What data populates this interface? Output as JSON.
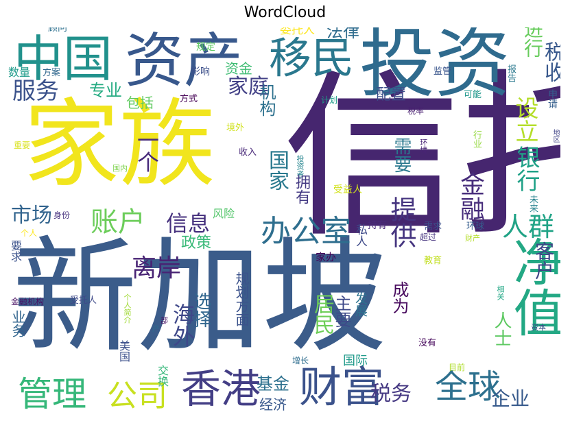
{
  "title": "WordCloud",
  "colors": [
    "#440154",
    "#472c7a",
    "#3b518b",
    "#2c718e",
    "#21908d",
    "#27ad81",
    "#5cc863",
    "#aadc32",
    "#fde725"
  ],
  "words": [
    {
      "text": "新加坡",
      "color": "#3b5c8a"
    },
    {
      "text": "信托",
      "color": "#46266f"
    },
    {
      "text": "家族",
      "color": "#f1e51d"
    },
    {
      "text": "投资",
      "color": "#2f6b8e"
    },
    {
      "text": "资产",
      "color": "#38588c"
    },
    {
      "text": "中国",
      "color": "#21918c"
    },
    {
      "text": "移民",
      "color": "#2a788e"
    },
    {
      "text": "净值",
      "color": "#23a884"
    },
    {
      "text": "香港",
      "color": "#433e85"
    },
    {
      "text": "财富",
      "color": "#3b528b"
    },
    {
      "text": "全球",
      "color": "#2d708e"
    },
    {
      "text": "管理",
      "color": "#35b779"
    },
    {
      "text": "公司",
      "color": "#c8e020"
    },
    {
      "text": "办公室",
      "color": "#2e6e8e"
    },
    {
      "text": "提供",
      "color": "#45347f"
    },
    {
      "text": "金融",
      "color": "#472d7b"
    },
    {
      "text": "服务",
      "color": "#3b528b"
    },
    {
      "text": "家庭",
      "color": "#424086"
    },
    {
      "text": "法律",
      "color": "#2f6c8e"
    },
    {
      "text": "税收",
      "color": "#38588c"
    },
    {
      "text": "进行",
      "color": "#67cc5c"
    },
    {
      "text": "银行",
      "color": "#1fa187"
    },
    {
      "text": "设立",
      "color": "#b5de2b"
    },
    {
      "text": "人群",
      "color": "#20a386"
    },
    {
      "text": "客户",
      "color": "#404588"
    },
    {
      "text": "账户",
      "color": "#6ccd5a"
    },
    {
      "text": "市场",
      "color": "#32648e"
    },
    {
      "text": "信息",
      "color": "#46317e"
    },
    {
      "text": "离岸",
      "color": "#482374"
    },
    {
      "text": "海外",
      "color": "#3f4889"
    },
    {
      "text": "选择",
      "color": "#31668e"
    },
    {
      "text": "政策",
      "color": "#38b977"
    },
    {
      "text": "居民",
      "color": "#6ece58"
    },
    {
      "text": "国家",
      "color": "#29798e"
    },
    {
      "text": "需要",
      "color": "#2a788e"
    },
    {
      "text": "一个",
      "color": "#472a7a"
    },
    {
      "text": "配置",
      "color": "#3d4e8a"
    },
    {
      "text": "机构",
      "color": "#2d718e"
    },
    {
      "text": "专业",
      "color": "#25ab82"
    },
    {
      "text": "包括",
      "color": "#60ca60"
    },
    {
      "text": "资金",
      "color": "#3fbc73"
    },
    {
      "text": "委托人",
      "color": "#fde725"
    },
    {
      "text": "顾问",
      "color": "#2d708e"
    },
    {
      "text": "规定",
      "color": "#5ec962"
    },
    {
      "text": "数量",
      "color": "#1e9b8a"
    },
    {
      "text": "方案",
      "color": "#31688e"
    },
    {
      "text": "影响",
      "color": "#3c4f8a"
    },
    {
      "text": "方式",
      "color": "#440154"
    },
    {
      "text": "监管",
      "color": "#39558c"
    },
    {
      "text": "报告",
      "color": "#2a788e"
    },
    {
      "text": "可能",
      "color": "#1f978b"
    },
    {
      "text": "申请",
      "color": "#355f8d"
    },
    {
      "text": "计划",
      "color": "#1f9e89"
    },
    {
      "text": "税率",
      "color": "#481f70"
    },
    {
      "text": "行业",
      "color": "#95d840"
    },
    {
      "text": "地区",
      "color": "#414487"
    },
    {
      "text": "境外",
      "color": "#d0e11c"
    },
    {
      "text": "重要",
      "color": "#d8e219"
    },
    {
      "text": "收入",
      "color": "#482878"
    },
    {
      "text": "国内",
      "color": "#7fd34e"
    },
    {
      "text": "投资者",
      "color": "#25848e"
    },
    {
      "text": "环境",
      "color": "#482475"
    },
    {
      "text": "拥有",
      "color": "#443a83"
    },
    {
      "text": "受益人",
      "color": "#d2e21b"
    },
    {
      "text": "未来",
      "color": "#26828e"
    },
    {
      "text": "身份",
      "color": "#46327e"
    },
    {
      "text": "风险",
      "color": "#52c569"
    },
    {
      "text": "私人",
      "color": "#3e4a89"
    },
    {
      "text": "持有",
      "color": "#482979"
    },
    {
      "text": "需求",
      "color": "#3c508b"
    },
    {
      "text": "环球",
      "color": "#365c8d"
    },
    {
      "text": "超过",
      "color": "#46337f"
    },
    {
      "text": "财产",
      "color": "#b5de2b"
    },
    {
      "text": "个人",
      "color": "#fde725"
    },
    {
      "text": "要求",
      "color": "#3b528b"
    },
    {
      "text": "家办",
      "color": "#450457"
    },
    {
      "text": "教育",
      "color": "#c2df23"
    },
    {
      "text": "相关",
      "color": "#22a785"
    },
    {
      "text": "金融机构",
      "color": "#471063"
    },
    {
      "text": "受托人",
      "color": "#3e4989"
    },
    {
      "text": "个人简介",
      "color": "#a2da37"
    },
    {
      "text": "业务",
      "color": "#32658e"
    },
    {
      "text": "产",
      "color": "#2e6d8e"
    },
    {
      "text": "部",
      "color": "#481769"
    },
    {
      "text": "规划方面",
      "color": "#3b528b"
    },
    {
      "text": "主要",
      "color": "#3e4989"
    },
    {
      "text": "发展",
      "color": "#2c728e"
    },
    {
      "text": "成为",
      "color": "#46085c"
    },
    {
      "text": "资本",
      "color": "#3b528b"
    },
    {
      "text": "没有",
      "color": "#46085c"
    },
    {
      "text": "美国",
      "color": "#3c508b"
    },
    {
      "text": "交换",
      "color": "#35b779"
    },
    {
      "text": "增长",
      "color": "#2e6d8e"
    },
    {
      "text": "目前",
      "color": "#b0dd2f"
    },
    {
      "text": "基金",
      "color": "#2d708e"
    },
    {
      "text": "经济",
      "color": "#38588c"
    },
    {
      "text": "国际",
      "color": "#1f9a8a"
    },
    {
      "text": "税务",
      "color": "#453882"
    },
    {
      "text": "企业",
      "color": "#375a8c"
    },
    {
      "text": "人士",
      "color": "#5ec962"
    }
  ]
}
